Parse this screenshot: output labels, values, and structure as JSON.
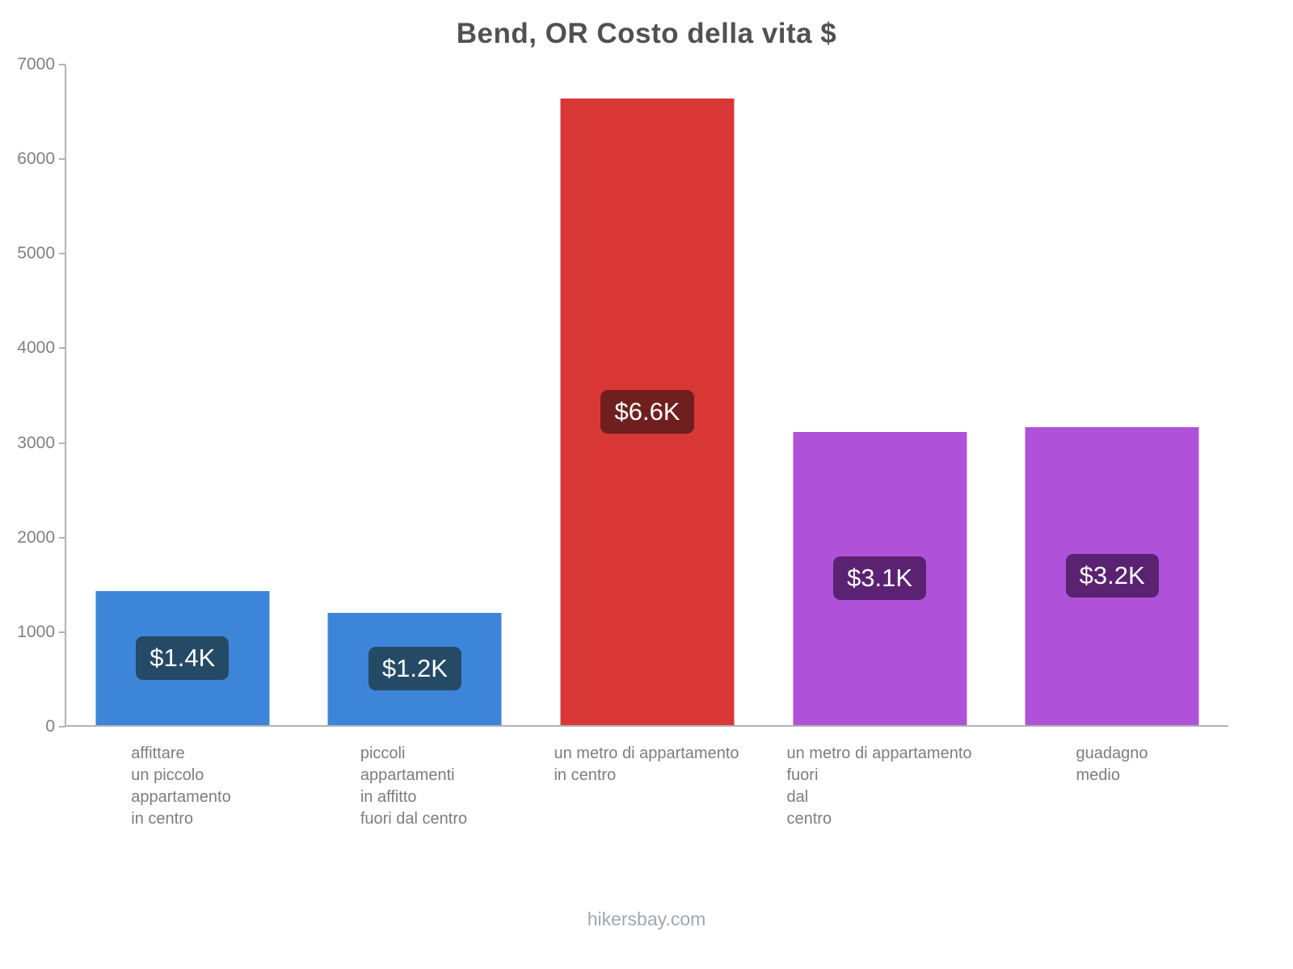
{
  "footer": "hikersbay.com",
  "chart_data": {
    "type": "bar",
    "title": "Bend, OR Costo della vita $",
    "xlabel": "",
    "ylabel": "",
    "ylim": [
      0,
      7000
    ],
    "yticks": [
      0,
      1000,
      2000,
      3000,
      4000,
      5000,
      6000,
      7000
    ],
    "grid": false,
    "legend": false,
    "categories": [
      {
        "lines": [
          "affittare",
          "un piccolo",
          "appartamento",
          "in centro"
        ]
      },
      {
        "lines": [
          "piccoli",
          "appartamenti",
          "in affitto",
          "fuori dal centro"
        ]
      },
      {
        "lines": [
          "un metro di appartamento",
          "in centro"
        ]
      },
      {
        "lines": [
          "un metro di appartamento",
          "fuori",
          "dal",
          "centro"
        ]
      },
      {
        "lines": [
          "guadagno",
          "medio"
        ]
      }
    ],
    "values": [
      1420,
      1190,
      6640,
      3110,
      3160
    ],
    "value_labels": [
      "$1.4K",
      "$1.2K",
      "$6.6K",
      "$3.1K",
      "$3.2K"
    ],
    "bar_colors": [
      "#3d85d9",
      "#3d85d9",
      "#d93636",
      "#b052d9",
      "#b052d9"
    ],
    "value_label_colors": [
      "#254a66",
      "#254a66",
      "#701f1f",
      "#5b2272",
      "#5b2272"
    ]
  }
}
